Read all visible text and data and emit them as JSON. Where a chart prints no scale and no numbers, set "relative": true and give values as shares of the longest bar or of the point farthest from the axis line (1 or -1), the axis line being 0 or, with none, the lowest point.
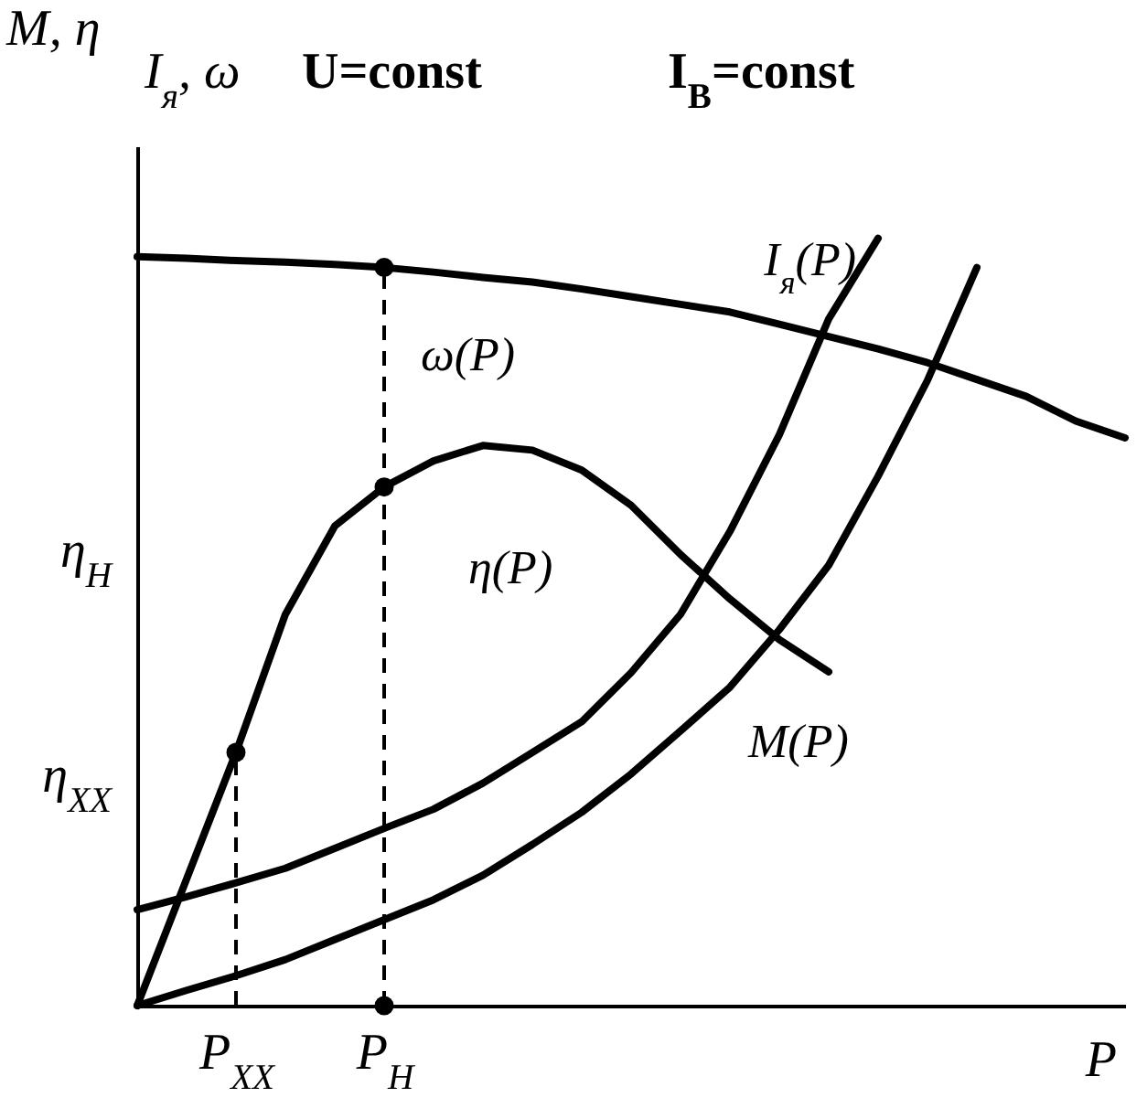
{
  "chart_data": {
    "type": "line",
    "relative": true,
    "xlabel": "P",
    "ylabel": "M, η",
    "categories": [
      null,
      null,
      "P$_{XX}$",
      null,
      null,
      "P$_{Н}$",
      null,
      null,
      null,
      null,
      null,
      null,
      null,
      null,
      null,
      null,
      null,
      null,
      null,
      null,
      null
    ],
    "annotations": [
      "I$_{я}$, ω",
      "U=const",
      "I$_{В}$=const",
      "η$_{XX}$",
      "η$_{Н}$"
    ],
    "series": [
      {
        "name": "ω(P)",
        "color": "#000000",
        "values": [
          0.976,
          0.974,
          0.971,
          0.969,
          0.966,
          0.962,
          0.956,
          0.949,
          0.943,
          0.934,
          0.924,
          0.914,
          0.904,
          0.888,
          0.872,
          0.856,
          0.838,
          0.816,
          0.794,
          0.762,
          0.74
        ]
      },
      {
        "name": "η(P)",
        "color": "#000000",
        "values": [
          0,
          0.165,
          0.33,
          0.51,
          0.625,
          0.676,
          0.71,
          0.73,
          0.724,
          0.698,
          0.652,
          0.588,
          0.53,
          0.477,
          0.435,
          null,
          null,
          null,
          null,
          null,
          null
        ]
      },
      {
        "name": "I$_{я}$(P)",
        "color": "#000000",
        "values": [
          0.125,
          0.142,
          0.16,
          0.179,
          0.205,
          0.231,
          0.256,
          0.29,
          0.33,
          0.37,
          0.434,
          0.51,
          0.618,
          0.744,
          0.895,
          1,
          null,
          null,
          null,
          null,
          null
        ]
      },
      {
        "name": "M(P)",
        "color": "#000000",
        "values": [
          0,
          0.02,
          0.039,
          0.06,
          0.086,
          0.112,
          0.138,
          0.17,
          0.21,
          0.252,
          0.302,
          0.358,
          0.415,
          0.49,
          0.574,
          0.69,
          0.815,
          0.962,
          null,
          null,
          null
        ]
      },
      {
        "type": "scatter",
        "marker": "circle",
        "color": "#000000",
        "x": [
          "P$_{Н}$",
          "P$_{Н}$",
          "P$_{XX}$",
          "P$_{Н}$"
        ],
        "values": [
          0.962,
          0.676,
          0.33,
          0
        ]
      },
      {
        "type": "line",
        "line_style": "dashed",
        "color": "#000000",
        "x": [
          "P$_{XX}$",
          "P$_{XX}$"
        ],
        "values": [
          0,
          0.33
        ]
      },
      {
        "type": "line",
        "line_style": "dashed",
        "color": "#000000",
        "x": [
          "P$_{Н}$",
          "P$_{Н}$",
          "P$_{Н}$"
        ],
        "values": [
          0,
          0.676,
          0.962
        ]
      }
    ]
  }
}
